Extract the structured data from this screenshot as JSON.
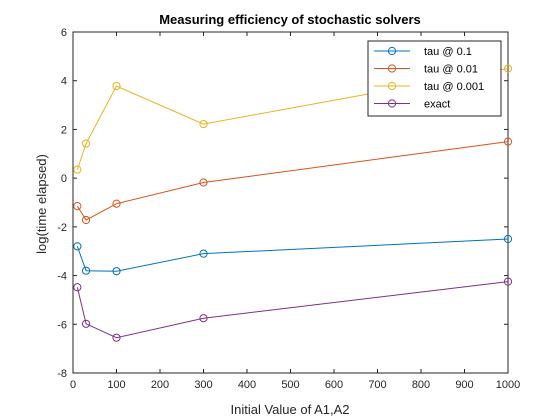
{
  "chart_data": {
    "type": "line",
    "title": "Measuring efficiency of stochastic solvers",
    "xlabel": "Initial Value of A1,A2",
    "ylabel": "log(time elapsed)",
    "xlim": [
      0,
      1000
    ],
    "ylim": [
      -8,
      6
    ],
    "xticks": [
      "0",
      "100",
      "200",
      "300",
      "400",
      "500",
      "600",
      "700",
      "800",
      "900",
      "1000"
    ],
    "yticks": [
      "-8",
      "-6",
      "-4",
      "-2",
      "0",
      "2",
      "4",
      "6"
    ],
    "grid": false,
    "legend_position": "top-right",
    "x": [
      10,
      30,
      100,
      300,
      1000
    ],
    "series": [
      {
        "name": "tau @ 0.1",
        "color": "#0072BD",
        "values": [
          -2.8,
          -3.8,
          -3.82,
          -3.1,
          -2.5
        ]
      },
      {
        "name": "tau @ 0.01",
        "color": "#D95319",
        "values": [
          -1.15,
          -1.72,
          -1.05,
          -0.18,
          1.5
        ]
      },
      {
        "name": "tau @ 0.001",
        "color": "#EDB120",
        "values": [
          0.35,
          1.42,
          3.78,
          2.22,
          4.5
        ]
      },
      {
        "name": "exact",
        "color": "#7E2F8E",
        "values": [
          -4.48,
          -5.98,
          -6.55,
          -5.75,
          -4.25
        ]
      }
    ]
  }
}
